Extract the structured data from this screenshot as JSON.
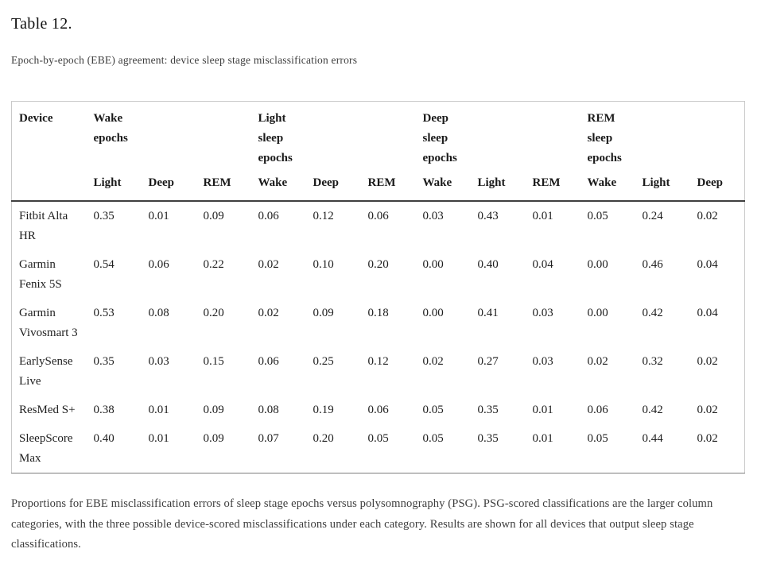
{
  "chart_data": {
    "type": "table",
    "title": "Table 12.",
    "subtitle": "Epoch-by-epoch (EBE) agreement: device sleep stage misclassification errors",
    "column_groups": [
      {
        "label": "Device",
        "sub": []
      },
      {
        "label": "Wake epochs",
        "sub": [
          "Light",
          "Deep",
          "REM"
        ]
      },
      {
        "label": "Light sleep epochs",
        "sub": [
          "Wake",
          "Deep",
          "REM"
        ]
      },
      {
        "label": "Deep sleep epochs",
        "sub": [
          "Wake",
          "Light",
          "REM"
        ]
      },
      {
        "label": "REM sleep epochs",
        "sub": [
          "Wake",
          "Light",
          "Deep"
        ]
      }
    ],
    "rows": [
      {
        "device": "Fitbit Alta HR",
        "values": [
          "0.35",
          "0.01",
          "0.09",
          "0.06",
          "0.12",
          "0.06",
          "0.03",
          "0.43",
          "0.01",
          "0.05",
          "0.24",
          "0.02"
        ]
      },
      {
        "device": "Garmin Fenix 5S",
        "values": [
          "0.54",
          "0.06",
          "0.22",
          "0.02",
          "0.10",
          "0.20",
          "0.00",
          "0.40",
          "0.04",
          "0.00",
          "0.46",
          "0.04"
        ]
      },
      {
        "device": "Garmin Vivosmart 3",
        "values": [
          "0.53",
          "0.08",
          "0.20",
          "0.02",
          "0.09",
          "0.18",
          "0.00",
          "0.41",
          "0.03",
          "0.00",
          "0.42",
          "0.04"
        ]
      },
      {
        "device": "EarlySense Live",
        "values": [
          "0.35",
          "0.03",
          "0.15",
          "0.06",
          "0.25",
          "0.12",
          "0.02",
          "0.27",
          "0.03",
          "0.02",
          "0.32",
          "0.02"
        ]
      },
      {
        "device": "ResMed S+",
        "values": [
          "0.38",
          "0.01",
          "0.09",
          "0.08",
          "0.19",
          "0.06",
          "0.05",
          "0.35",
          "0.01",
          "0.06",
          "0.42",
          "0.02"
        ]
      },
      {
        "device": "SleepScore Max",
        "values": [
          "0.40",
          "0.01",
          "0.09",
          "0.07",
          "0.20",
          "0.05",
          "0.05",
          "0.35",
          "0.01",
          "0.05",
          "0.44",
          "0.02"
        ]
      }
    ],
    "caption": "Proportions for EBE misclassification errors of sleep stage epochs versus polysomnography (PSG). PSG-scored classifications are the larger column categories, with the three possible device-scored misclassifications under each category. Results are shown for all devices that output sleep stage classifications.",
    "colors": {
      "text": "#1e1e1e",
      "muted_text": "#3d3d3d",
      "table_border": "#c9c9c9",
      "header_rule": "#3f3f3f"
    }
  }
}
